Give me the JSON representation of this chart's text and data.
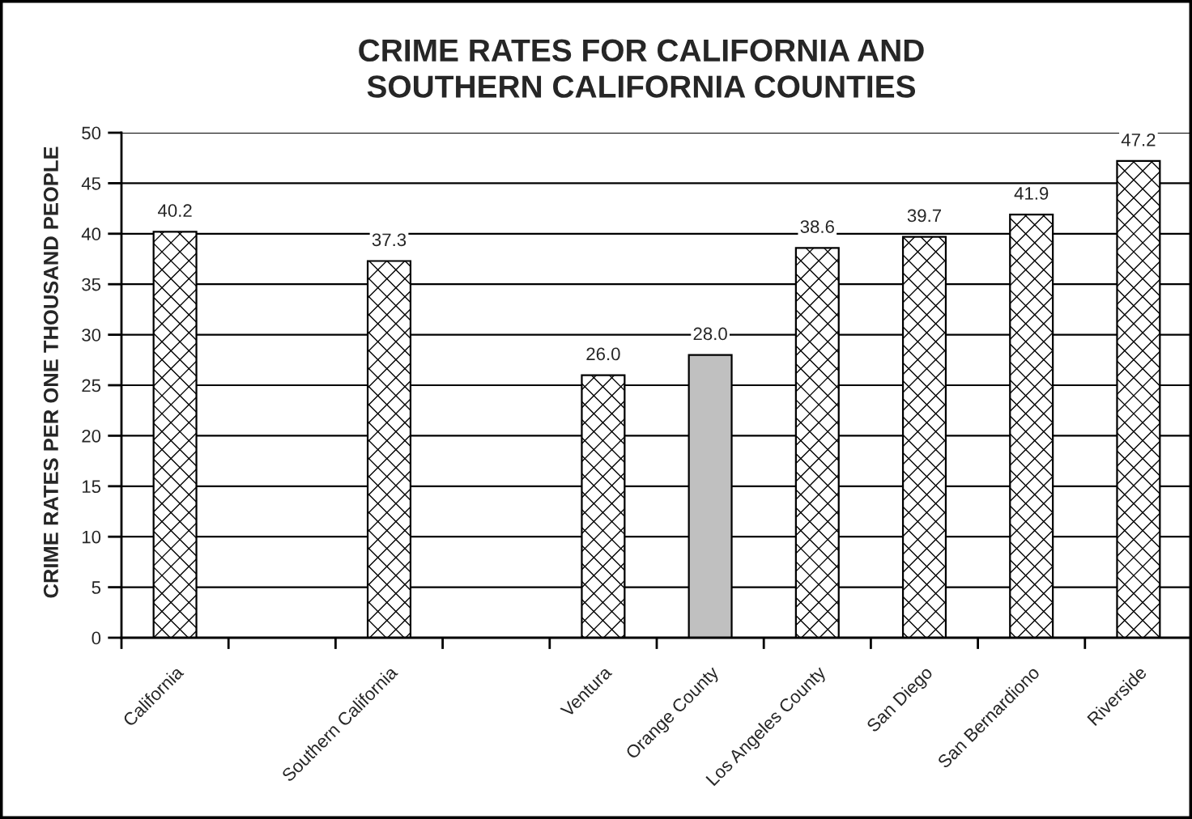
{
  "chart_data": {
    "type": "bar",
    "title": "CRIME RATES FOR CALIFORNIA AND\nSOUTHERN CALIFORNIA COUNTIES",
    "ylabel": "CRIME RATES PER ONE THOUSAND PEOPLE",
    "categories": [
      "California",
      null,
      "Southern California",
      null,
      "Ventura",
      "Orange County",
      "Los Angeles County",
      "San Diego",
      "San Bernardiono",
      "Riverside"
    ],
    "values": [
      40.2,
      null,
      37.3,
      null,
      26.0,
      28.0,
      38.6,
      39.7,
      41.9,
      47.2
    ],
    "value_labels": [
      "40.2",
      null,
      "37.3",
      null,
      "26.0",
      "28.0",
      "38.6",
      "39.7",
      "41.9",
      "47.2"
    ],
    "colors": [
      "#000000",
      null,
      "#000000",
      null,
      "#000000",
      "#c0c0c0",
      "#000000",
      "#000000",
      "#000000",
      "#000000"
    ],
    "ylim": [
      0,
      50
    ],
    "yticks": [
      0,
      5,
      10,
      15,
      20,
      25,
      30,
      35,
      40,
      45,
      50
    ],
    "grid": "y"
  }
}
